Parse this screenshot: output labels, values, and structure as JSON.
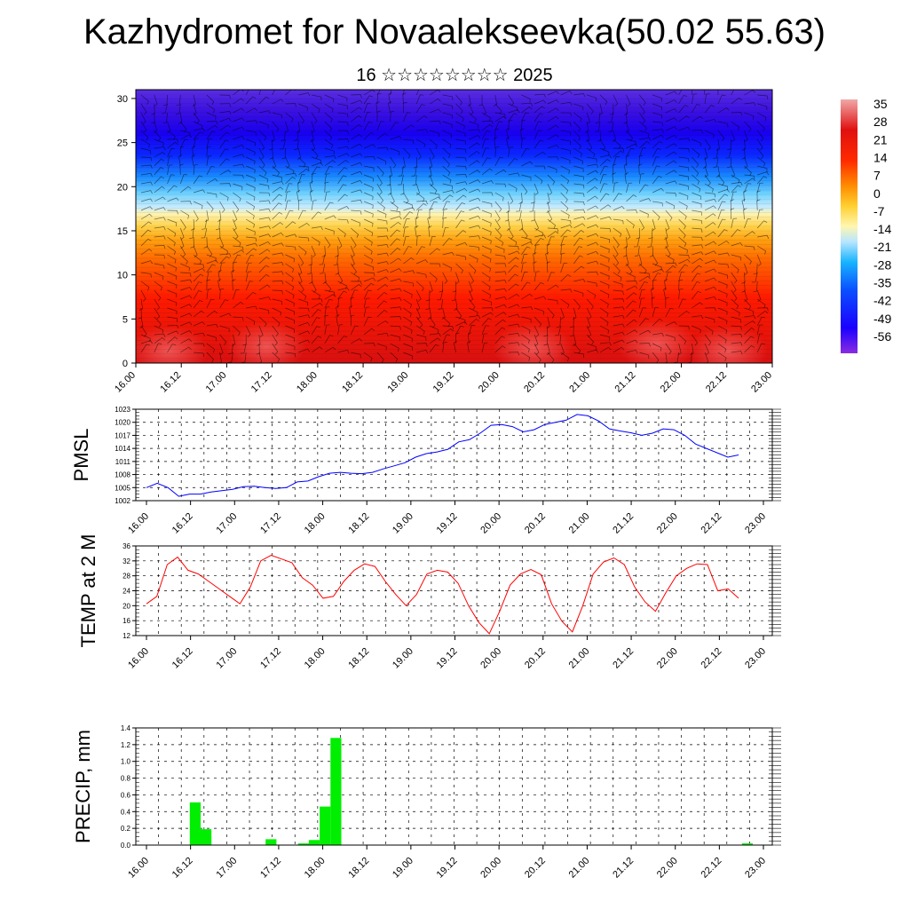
{
  "header": {
    "title": "Kazhydromet for Novaalekseevka(50.02 55.63)",
    "subtitle": "16 ☆☆☆☆☆☆☆☆ 2025"
  },
  "time_labels": [
    "16.00",
    "16.12",
    "17.00",
    "17.12",
    "18.00",
    "18.12",
    "19.00",
    "19.12",
    "20.00",
    "20.12",
    "21.00",
    "21.12",
    "22.00",
    "22.12",
    "23.00"
  ],
  "chart_data": [
    {
      "type": "heatmap",
      "title": "",
      "xlabel": "",
      "ylabel": "",
      "x": [
        "16.00",
        "16.12",
        "17.00",
        "17.12",
        "18.00",
        "18.12",
        "19.00",
        "19.12",
        "20.00",
        "20.12",
        "21.00",
        "21.12",
        "22.00",
        "22.12",
        "23.00"
      ],
      "y_ticks": [
        0,
        5,
        10,
        15,
        20,
        25,
        30
      ],
      "ylim": [
        0,
        31
      ],
      "colorbar_labels": [
        "35",
        "28",
        "21",
        "14",
        "7",
        "0",
        "-7",
        "-14",
        "-21",
        "-28",
        "-35",
        "-42",
        "-49",
        "-56"
      ],
      "colorbar_range": [
        -63,
        42
      ],
      "overlay": "wind barbs",
      "colors": [
        "#ff0000",
        "#ff7f00",
        "#ffd000",
        "#ffff99",
        "#b9e7ff",
        "#00aaff",
        "#0000ff",
        "#6600cc"
      ]
    },
    {
      "type": "line",
      "ylabel": "PMSL",
      "ylim": [
        1002,
        1023
      ],
      "y_ticks": [
        1002,
        1005,
        1008,
        1011,
        1014,
        1017,
        1020,
        1023
      ],
      "x_ticks": [
        "16.00",
        "16.12",
        "17.00",
        "17.12",
        "18.00",
        "18.12",
        "19.00",
        "19.12",
        "20.00",
        "20.12",
        "21.00",
        "21.12",
        "22.00",
        "22.12",
        "23.00"
      ],
      "color": "#0000ff",
      "series": [
        {
          "values": [
            1005,
            1006,
            1005,
            1003,
            1003.5,
            1003.5,
            1004,
            1004.3,
            1004.6,
            1005.2,
            1005.3,
            1005,
            1004.8,
            1005,
            1006.3,
            1006.5,
            1007.5,
            1008.3,
            1008.5,
            1008.3,
            1008.2,
            1008.5,
            1009.3,
            1010,
            1010.7,
            1012,
            1012.8,
            1013.2,
            1013.8,
            1015.5,
            1016,
            1017.5,
            1019.3,
            1019.5,
            1019,
            1017.8,
            1018.3,
            1019.5,
            1020,
            1020.5,
            1021.8,
            1021.5,
            1020.3,
            1018.5,
            1018,
            1017.6,
            1017,
            1017.5,
            1018.5,
            1018.3,
            1017,
            1015,
            1014,
            1013,
            1012,
            1012.5
          ]
        }
      ]
    },
    {
      "type": "line",
      "ylabel": "TEMP at 2 M",
      "ylim": [
        12,
        36
      ],
      "y_ticks": [
        12,
        16,
        20,
        24,
        28,
        32,
        36
      ],
      "x_ticks": [
        "16.00",
        "16.12",
        "17.00",
        "17.12",
        "18.00",
        "18.12",
        "19.00",
        "19.12",
        "20.00",
        "20.12",
        "21.00",
        "21.12",
        "22.00",
        "22.12",
        "23.00"
      ],
      "color": "#ff0000",
      "series": [
        {
          "values": [
            20.5,
            22.5,
            31,
            33,
            29.5,
            28.5,
            26.5,
            24.5,
            22.5,
            20.5,
            25,
            32,
            33.5,
            32.5,
            31.5,
            27.5,
            25.5,
            22,
            22.5,
            26.5,
            29.5,
            31.2,
            30.5,
            26.5,
            23,
            20,
            23,
            28.5,
            29.5,
            29,
            26,
            20,
            15.5,
            12.5,
            18.5,
            25.5,
            28.5,
            29.7,
            28.3,
            20.5,
            15.8,
            13,
            20,
            28.5,
            31.7,
            32.8,
            31,
            25,
            21,
            18.5,
            23.5,
            28,
            30,
            31.2,
            31,
            24,
            24.5,
            22
          ]
        }
      ]
    },
    {
      "type": "bar",
      "ylabel": "PRECIP, mm",
      "ylim": [
        0,
        1.4
      ],
      "y_ticks": [
        "0.0",
        "0.2",
        "0.4",
        "0.6",
        "0.8",
        "1.0",
        "1.2",
        "1.4"
      ],
      "x_ticks": [
        "16.00",
        "16.12",
        "17.00",
        "17.12",
        "18.00",
        "18.12",
        "19.00",
        "19.12",
        "20.00",
        "20.12",
        "21.00",
        "21.12",
        "22.00",
        "22.12",
        "23.00"
      ],
      "color": "#00ee00",
      "values": [
        0,
        0,
        0,
        0,
        0.51,
        0.19,
        0,
        0,
        0,
        0,
        0,
        0.07,
        0,
        0,
        0.02,
        0.06,
        0.46,
        1.28,
        0,
        0,
        0,
        0,
        0,
        0,
        0,
        0,
        0,
        0,
        0,
        0,
        0,
        0,
        0,
        0,
        0,
        0,
        0,
        0,
        0,
        0,
        0,
        0,
        0,
        0,
        0,
        0,
        0,
        0,
        0,
        0,
        0,
        0,
        0,
        0,
        0,
        0.02
      ]
    }
  ]
}
